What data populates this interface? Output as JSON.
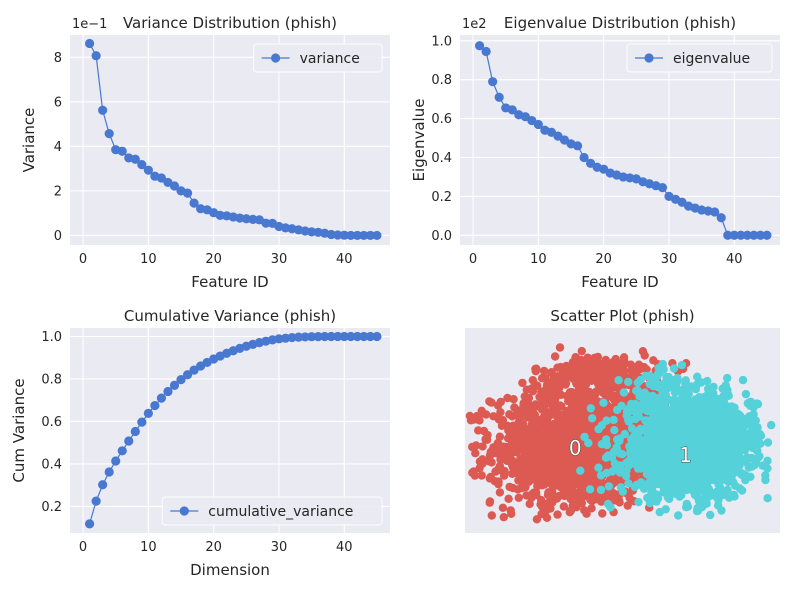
{
  "figure_title": "",
  "colors": {
    "series": "#4878d0",
    "axes_bg": "#eaeaf2",
    "grid": "#ffffff",
    "cluster_0": "#dc5a52",
    "cluster_1": "#55d1d9"
  },
  "chart_data": [
    {
      "type": "line",
      "title": "Variance Distribution (phish)",
      "xlabel": "Feature ID",
      "ylabel": "Variance",
      "offset_label": "1e−1",
      "xlim": [
        -2,
        47
      ],
      "ylim": [
        -0.43,
        9.0
      ],
      "xticks": [
        0,
        10,
        20,
        30,
        40
      ],
      "yticks": [
        0,
        2,
        4,
        6,
        8
      ],
      "grid": true,
      "legend": "top-right",
      "marker": "circle",
      "series": [
        {
          "name": "variance",
          "x": [
            1,
            2,
            3,
            4,
            5,
            6,
            7,
            8,
            9,
            10,
            11,
            12,
            13,
            14,
            15,
            16,
            17,
            18,
            19,
            20,
            21,
            22,
            23,
            24,
            25,
            26,
            27,
            28,
            29,
            30,
            31,
            32,
            33,
            34,
            35,
            36,
            37,
            38,
            39,
            40,
            41,
            42,
            43,
            44,
            45
          ],
          "values": [
            8.62,
            8.07,
            5.62,
            4.57,
            3.85,
            3.78,
            3.48,
            3.42,
            3.18,
            2.93,
            2.66,
            2.58,
            2.38,
            2.22,
            2.0,
            1.9,
            1.45,
            1.2,
            1.15,
            1.02,
            0.9,
            0.88,
            0.83,
            0.78,
            0.75,
            0.72,
            0.7,
            0.55,
            0.54,
            0.4,
            0.34,
            0.3,
            0.25,
            0.2,
            0.16,
            0.14,
            0.1,
            0.04,
            0.02,
            0.01,
            0.0,
            0.0,
            0.0,
            0.0,
            0.0
          ]
        }
      ]
    },
    {
      "type": "line",
      "title": "Eigenvalue Distribution (phish)",
      "xlabel": "Feature ID",
      "ylabel": "Eigenvalue",
      "offset_label": "1e2",
      "xlim": [
        -2,
        47
      ],
      "ylim": [
        -0.05,
        1.03
      ],
      "xticks": [
        0,
        10,
        20,
        30,
        40
      ],
      "yticks": [
        0.0,
        0.2,
        0.4,
        0.6,
        0.8,
        1.0
      ],
      "ytick_labels": [
        "0.0",
        "0.2",
        "0.4",
        "0.6",
        "0.8",
        "1.0"
      ],
      "grid": true,
      "legend": "top-right",
      "marker": "circle",
      "series": [
        {
          "name": "eigenvalue",
          "x": [
            1,
            2,
            3,
            4,
            5,
            6,
            7,
            8,
            9,
            10,
            11,
            12,
            13,
            14,
            15,
            16,
            17,
            18,
            19,
            20,
            21,
            22,
            23,
            24,
            25,
            26,
            27,
            28,
            29,
            30,
            31,
            32,
            33,
            34,
            35,
            36,
            37,
            38,
            39,
            40,
            41,
            42,
            43,
            44,
            45
          ],
          "values": [
            0.975,
            0.945,
            0.79,
            0.71,
            0.655,
            0.645,
            0.62,
            0.61,
            0.59,
            0.57,
            0.54,
            0.53,
            0.51,
            0.49,
            0.47,
            0.46,
            0.4,
            0.37,
            0.35,
            0.34,
            0.32,
            0.31,
            0.3,
            0.295,
            0.29,
            0.275,
            0.265,
            0.255,
            0.245,
            0.2,
            0.185,
            0.17,
            0.15,
            0.14,
            0.13,
            0.125,
            0.12,
            0.09,
            0.0,
            0.0,
            0.0,
            0.0,
            0.0,
            0.0,
            0.0
          ]
        }
      ]
    },
    {
      "type": "line",
      "title": "Cumulative Variance (phish)",
      "xlabel": "Dimension",
      "ylabel": "Cum Variance",
      "xlim": [
        -2,
        47
      ],
      "ylim": [
        0.075,
        1.04
      ],
      "xticks": [
        0,
        10,
        20,
        30,
        40
      ],
      "yticks": [
        0.2,
        0.4,
        0.6,
        0.8,
        1.0
      ],
      "ytick_labels": [
        "0.2",
        "0.4",
        "0.6",
        "0.8",
        "1.0"
      ],
      "grid": true,
      "legend": "bottom-right",
      "marker": "circle",
      "series": [
        {
          "name": "cumulative_variance",
          "x": [
            1,
            2,
            3,
            4,
            5,
            6,
            7,
            8,
            9,
            10,
            11,
            12,
            13,
            14,
            15,
            16,
            17,
            18,
            19,
            20,
            21,
            22,
            23,
            24,
            25,
            26,
            27,
            28,
            29,
            30,
            31,
            32,
            33,
            34,
            35,
            36,
            37,
            38,
            39,
            40,
            41,
            42,
            43,
            44,
            45
          ],
          "values": [
            0.118,
            0.225,
            0.302,
            0.362,
            0.414,
            0.462,
            0.508,
            0.553,
            0.597,
            0.638,
            0.675,
            0.71,
            0.741,
            0.77,
            0.797,
            0.82,
            0.842,
            0.861,
            0.878,
            0.894,
            0.908,
            0.921,
            0.933,
            0.944,
            0.954,
            0.963,
            0.971,
            0.978,
            0.984,
            0.989,
            0.992,
            0.995,
            0.997,
            0.998,
            0.999,
            0.9995,
            1.0,
            1.0,
            1.0,
            1.0,
            1.0,
            1.0,
            1.0,
            1.0,
            1.0
          ]
        }
      ]
    },
    {
      "type": "scatter",
      "title": "Scatter Plot (phish)",
      "xlabel": "",
      "ylabel": "",
      "grid": false,
      "axis_ticks": false,
      "clusters": [
        {
          "label": "0",
          "color": "#dc5a52",
          "center": [
            -0.25,
            -0.1
          ],
          "blobs": [
            {
              "cx": -0.25,
              "cy": -0.1,
              "sx": 0.26,
              "sy": 0.2,
              "n": 1500
            },
            {
              "cx": 0.05,
              "cy": 0.05,
              "sx": 0.14,
              "sy": 0.16,
              "n": 400
            },
            {
              "cx": -0.12,
              "cy": 0.42,
              "sx": 0.2,
              "sy": 0.07,
              "n": 220
            }
          ]
        },
        {
          "label": "1",
          "color": "#55d1d9",
          "center": [
            0.45,
            -0.15
          ],
          "blobs": [
            {
              "cx": 0.45,
              "cy": -0.1,
              "sx": 0.2,
              "sy": 0.17,
              "n": 1400
            },
            {
              "cx": 0.72,
              "cy": 0.02,
              "sx": 0.09,
              "sy": 0.12,
              "n": 250
            },
            {
              "cx": 0.3,
              "cy": 0.32,
              "sx": 0.14,
              "sy": 0.08,
              "n": 60
            }
          ]
        }
      ]
    }
  ]
}
